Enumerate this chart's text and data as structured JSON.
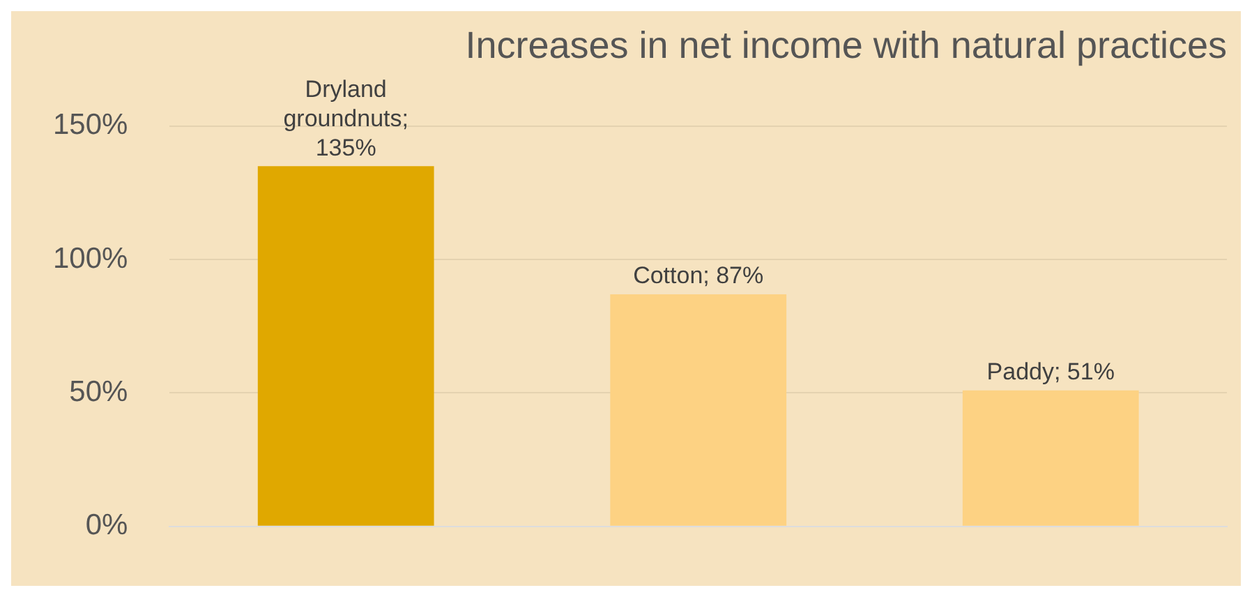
{
  "chart_data": {
    "type": "bar",
    "title": "Increases in net income with natural practices",
    "categories": [
      null,
      null,
      null
    ],
    "values": [
      135,
      87,
      51
    ],
    "colors": [
      "#e0a800",
      "#fdd283",
      "#fdd283"
    ],
    "value_labels": [
      "Dryland groundnuts; 135%",
      "Cotton; 87%",
      "Paddy; 51%"
    ],
    "ylim": [
      0,
      150
    ],
    "yticks": [
      {
        "value": 0,
        "label": "0%"
      },
      {
        "value": 50,
        "label": "50%"
      },
      {
        "value": 100,
        "label": "100%"
      },
      {
        "value": 150,
        "label": "150%"
      }
    ],
    "grid": "y",
    "legend": false
  }
}
